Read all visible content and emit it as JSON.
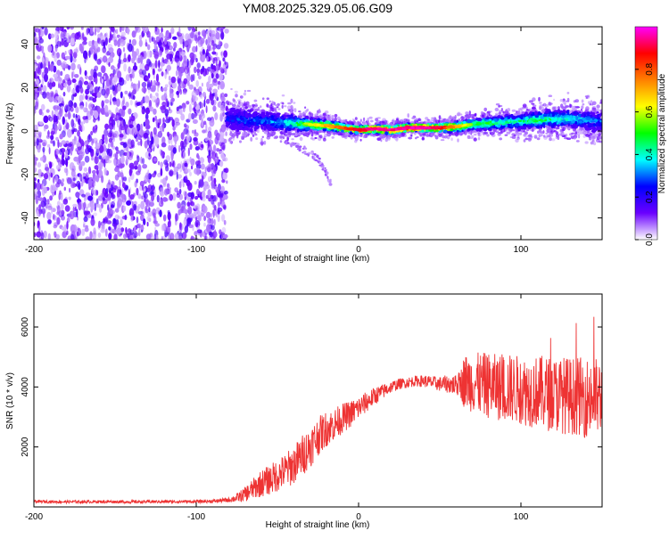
{
  "title": "YM08.2025.329.05.06.G09",
  "chart_data": [
    {
      "type": "heatmap",
      "title": "YM08.2025.329.05.06.G09",
      "xlabel": "Height of straight line (km)",
      "ylabel": "Frequency (Hz)",
      "xlim": [
        -200,
        150
      ],
      "ylim": [
        -50,
        48
      ],
      "xticks": [
        -200,
        -100,
        0,
        100
      ],
      "yticks": [
        -40,
        -20,
        0,
        20,
        40
      ],
      "xtick_labels": [
        "-200",
        "-100",
        "0",
        "100"
      ],
      "ytick_labels": [
        "-40",
        "-20",
        "0",
        "20",
        "40"
      ],
      "noise_region_x": [
        -200,
        -81
      ],
      "ridge": {
        "x": [
          -81,
          -70,
          -60,
          -50,
          -40,
          -30,
          -20,
          -10,
          0,
          10,
          20,
          30,
          40,
          50,
          60,
          70,
          80,
          90,
          100,
          110,
          120,
          130,
          140,
          150
        ],
        "freq": [
          6,
          5,
          4.5,
          4,
          3.5,
          3,
          2.5,
          1.5,
          0.5,
          1,
          0.5,
          1.5,
          1.5,
          1.5,
          2,
          3,
          3.5,
          4,
          4.5,
          5,
          5.5,
          5.5,
          5,
          4
        ],
        "amplitude": [
          0.25,
          0.3,
          0.3,
          0.35,
          0.45,
          0.6,
          0.7,
          0.8,
          0.9,
          0.95,
          0.95,
          0.95,
          0.95,
          0.9,
          0.7,
          0.55,
          0.5,
          0.45,
          0.45,
          0.5,
          0.45,
          0.4,
          0.35,
          0.3
        ],
        "spread": [
          4,
          4,
          3.5,
          3.5,
          3,
          2.5,
          2,
          1.5,
          1.5,
          1.5,
          1.5,
          1.5,
          1.5,
          1.5,
          2,
          2,
          2.5,
          2.5,
          3,
          3,
          3.5,
          3.5,
          3.5,
          4
        ]
      },
      "side_branch": {
        "x": [
          -45,
          -35,
          -25,
          -20,
          -17
        ],
        "freq": [
          -4,
          -8,
          -13,
          -19,
          -24
        ]
      },
      "colorbar": {
        "label": "Normalized spectral amplitude",
        "range": [
          0,
          1
        ],
        "ticks": [
          0.0,
          0.2,
          0.4,
          0.6,
          0.8
        ],
        "tick_labels": [
          "0.0",
          "0.2",
          "0.4",
          "0.6",
          "0.8"
        ],
        "stops": [
          "#ffffff",
          "#6a00ff",
          "#0000ff",
          "#00ffff",
          "#00ff00",
          "#ffff00",
          "#ff8000",
          "#ff0000",
          "#ff00ff"
        ]
      }
    },
    {
      "type": "line",
      "xlabel": "Height of straight line (km)",
      "ylabel": "SNR (10 * v/v)",
      "xlim": [
        -200,
        150
      ],
      "ylim": [
        0,
        7100
      ],
      "xticks": [
        -200,
        -100,
        0,
        100
      ],
      "yticks": [
        2000,
        4000,
        6000
      ],
      "xtick_labels": [
        "-200",
        "-100",
        "0",
        "100"
      ],
      "ytick_labels": [
        "2000",
        "4000",
        "6000"
      ],
      "color": "#ee3333",
      "series": [
        {
          "name": "SNR",
          "x": [
            -200,
            -180,
            -160,
            -140,
            -120,
            -100,
            -90,
            -80,
            -75,
            -70,
            -65,
            -60,
            -55,
            -50,
            -45,
            -40,
            -35,
            -30,
            -25,
            -20,
            -15,
            -10,
            -5,
            0,
            5,
            10,
            15,
            20,
            25,
            30,
            35,
            40,
            45,
            50,
            55,
            60,
            63,
            65,
            70,
            75,
            80,
            85,
            90,
            95,
            100,
            105,
            110,
            115,
            120,
            125,
            130,
            135,
            140,
            145,
            150
          ],
          "mean": [
            180,
            170,
            175,
            170,
            175,
            180,
            190,
            230,
            300,
            420,
            600,
            780,
            900,
            1050,
            1200,
            1400,
            1700,
            2000,
            2350,
            2600,
            2750,
            2950,
            3100,
            3300,
            3500,
            3700,
            3850,
            4000,
            4100,
            4150,
            4200,
            4200,
            4150,
            4100,
            4100,
            4050,
            4100,
            4200,
            4150,
            4100,
            4050,
            4000,
            3950,
            3950,
            3900,
            3850,
            3850,
            3800,
            3750,
            3750,
            3700,
            3700,
            3650,
            3650,
            3600
          ],
          "jitter": [
            50,
            50,
            50,
            50,
            50,
            50,
            60,
            80,
            150,
            250,
            350,
            450,
            500,
            550,
            600,
            650,
            700,
            700,
            650,
            600,
            550,
            500,
            450,
            400,
            350,
            300,
            250,
            200,
            180,
            180,
            180,
            200,
            220,
            250,
            300,
            350,
            500,
            900,
            1000,
            1050,
            1100,
            1100,
            1150,
            1150,
            1150,
            1200,
            1200,
            1250,
            1250,
            1300,
            1300,
            1300,
            1350,
            1350,
            1350
          ]
        }
      ]
    }
  ]
}
